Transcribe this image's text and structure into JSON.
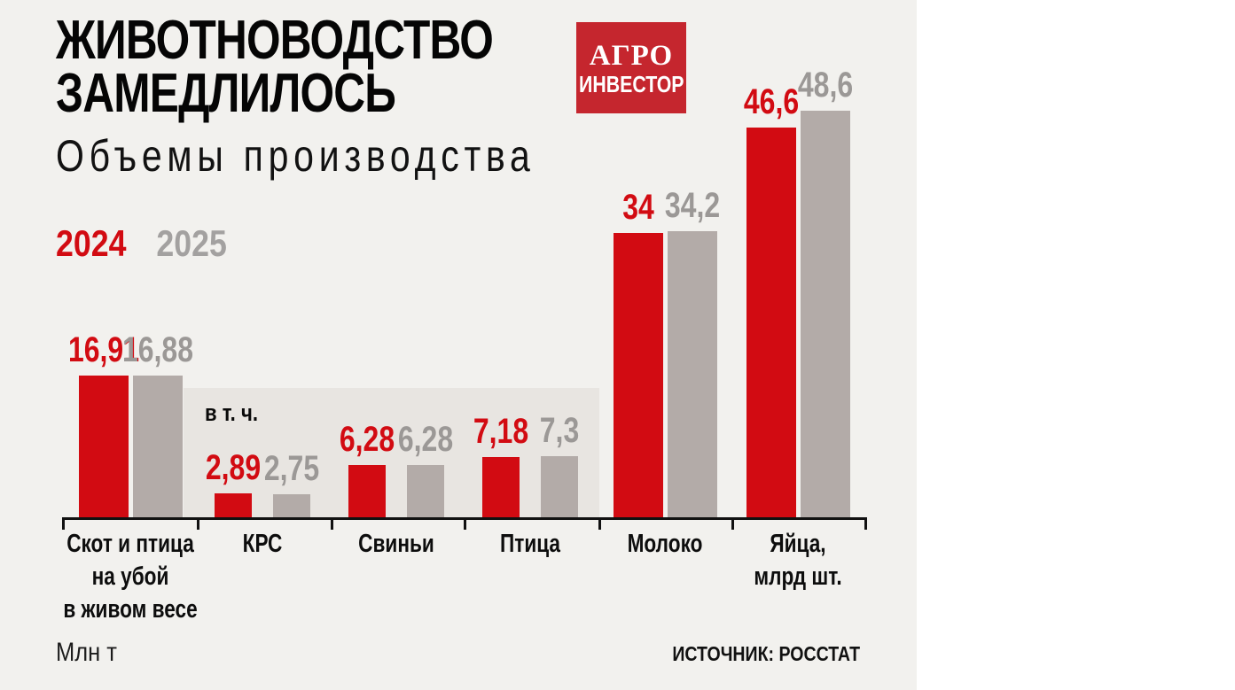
{
  "header": {
    "title_line1": "ЖИВОТНОВОДСТВО",
    "title_line2": "ЗАМЕДЛИЛОСЬ",
    "subtitle": "Объемы производства"
  },
  "logo": {
    "line1": "АГРО",
    "line2": "ИНВЕСТОР"
  },
  "colors": {
    "accent_red": "#d20b12",
    "bar_gray": "#b3aba8",
    "value_gray_text": "#9b9896",
    "legend_gray_text": "#a3a1a0",
    "panel_bg": "#e8e5e1",
    "canvas_bg": "#f2f1ee",
    "logo_bg": "#c5262e",
    "axis_black": "#111111"
  },
  "chart_data": {
    "type": "bar",
    "title": "Объемы производства",
    "legend": [
      "2024",
      "2025"
    ],
    "legend_position": "top-left",
    "ylabel": "Млн т",
    "ylim": [
      0,
      50
    ],
    "grid": false,
    "annotation": "в т. ч.",
    "series": [
      {
        "name": "2024",
        "values": [
          16.91,
          2.89,
          6.28,
          7.18,
          34,
          46.6
        ]
      },
      {
        "name": "2025",
        "values": [
          16.88,
          2.75,
          6.28,
          7.3,
          34.2,
          48.6
        ]
      }
    ],
    "categories": [
      {
        "key": "skot",
        "label": "Скот и птица\nна убой\nв живом весе",
        "group": "main",
        "v2024": 16.91,
        "v2025": 16.88,
        "d2024": "16,91",
        "d2025": "16,88"
      },
      {
        "key": "krs",
        "label": "КРС",
        "group": "sub",
        "v2024": 2.89,
        "v2025": 2.75,
        "d2024": "2,89",
        "d2025": "2,75"
      },
      {
        "key": "svinyi",
        "label": "Свиньи",
        "group": "sub",
        "v2024": 6.28,
        "v2025": 6.28,
        "d2024": "6,28",
        "d2025": "6,28"
      },
      {
        "key": "ptitsa",
        "label": "Птица",
        "group": "sub",
        "v2024": 7.18,
        "v2025": 7.3,
        "d2024": "7,18",
        "d2025": "7,3"
      },
      {
        "key": "moloko",
        "label": "Молоко",
        "group": "main",
        "v2024": 34,
        "v2025": 34.2,
        "d2024": "34",
        "d2025": "34,2"
      },
      {
        "key": "yaytsa",
        "label": "Яйца,\nмлрд шт.",
        "group": "main",
        "v2024": 46.6,
        "v2025": 48.6,
        "d2024": "46,6",
        "d2025": "48,6"
      }
    ]
  },
  "footer": {
    "units": "Млн т",
    "source": "ИСТОЧНИК: РОССТАТ"
  }
}
